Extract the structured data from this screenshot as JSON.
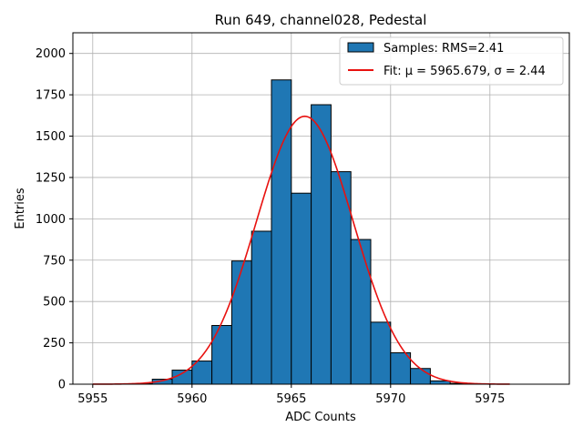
{
  "chart_data": {
    "type": "bar",
    "title": "Run 649, channel028, Pedestal",
    "xlabel": "ADC Counts",
    "ylabel": "Entries",
    "xlim": [
      5954,
      5979
    ],
    "ylim": [
      0,
      2125
    ],
    "xticks": [
      5955,
      5960,
      5965,
      5970,
      5975
    ],
    "yticks": [
      0,
      250,
      500,
      750,
      1000,
      1250,
      1500,
      1750,
      2000
    ],
    "grid": true,
    "legend_position": "top-right",
    "bin_width": 1,
    "bins": [
      {
        "x": 5957,
        "count": 3
      },
      {
        "x": 5958,
        "count": 30
      },
      {
        "x": 5959,
        "count": 85
      },
      {
        "x": 5960,
        "count": 140
      },
      {
        "x": 5961,
        "count": 355
      },
      {
        "x": 5962,
        "count": 745
      },
      {
        "x": 5963,
        "count": 925
      },
      {
        "x": 5964,
        "count": 1840
      },
      {
        "x": 5965,
        "count": 1155
      },
      {
        "x": 5966,
        "count": 1690
      },
      {
        "x": 5967,
        "count": 1285
      },
      {
        "x": 5968,
        "count": 875
      },
      {
        "x": 5969,
        "count": 375
      },
      {
        "x": 5970,
        "count": 190
      },
      {
        "x": 5971,
        "count": 95
      },
      {
        "x": 5972,
        "count": 20
      },
      {
        "x": 5973,
        "count": 5
      }
    ],
    "fit": {
      "mu": 5965.679,
      "sigma": 2.44,
      "peak": 1620,
      "x_range": [
        5955,
        5976
      ]
    },
    "series": [
      {
        "name": "Samples: RMS=2.41",
        "kind": "histogram",
        "color": "#1f77b4"
      },
      {
        "name": "Fit: μ = 5965.679, σ = 2.44",
        "kind": "line",
        "color": "#e8110f"
      }
    ]
  }
}
